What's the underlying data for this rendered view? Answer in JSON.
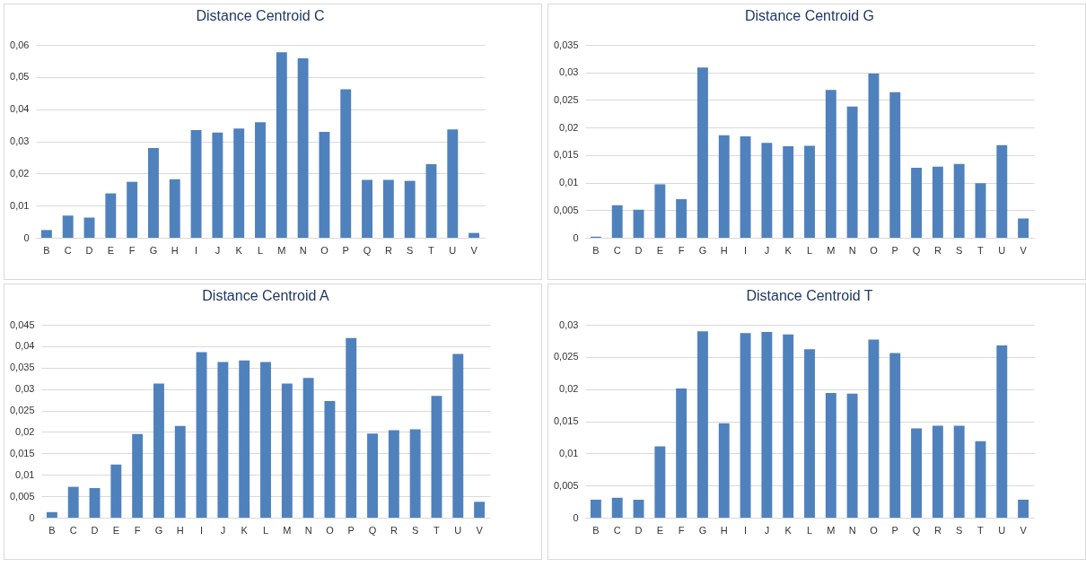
{
  "chart_data": [
    {
      "type": "bar",
      "title": "Distance Centroid C",
      "categories": [
        "B",
        "C",
        "D",
        "E",
        "F",
        "G",
        "H",
        "I",
        "J",
        "K",
        "L",
        "M",
        "N",
        "O",
        "P",
        "Q",
        "R",
        "S",
        "T",
        "U",
        "V"
      ],
      "values": [
        0.0024,
        0.0069,
        0.0063,
        0.0138,
        0.0174,
        0.0279,
        0.0182,
        0.0335,
        0.0327,
        0.034,
        0.0359,
        0.0577,
        0.0558,
        0.0329,
        0.0462,
        0.018,
        0.018,
        0.0177,
        0.0229,
        0.0337,
        0.0015
      ],
      "color": "#4f81bd",
      "ylim": [
        0,
        0.06
      ],
      "yticks": [
        {
          "value": 0,
          "label": "0"
        },
        {
          "value": 0.01,
          "label": "0,01"
        },
        {
          "value": 0.02,
          "label": "0,02"
        },
        {
          "value": 0.03,
          "label": "0,03"
        },
        {
          "value": 0.04,
          "label": "0,04"
        },
        {
          "value": 0.05,
          "label": "0,05"
        },
        {
          "value": 0.06,
          "label": "0,06"
        }
      ],
      "grid": "y"
    },
    {
      "type": "bar",
      "title": "Distance Centroid G",
      "categories": [
        "B",
        "C",
        "D",
        "E",
        "F",
        "G",
        "H",
        "I",
        "J",
        "K",
        "L",
        "M",
        "N",
        "O",
        "P",
        "Q",
        "R",
        "S",
        "T",
        "U",
        "V"
      ],
      "values": [
        0.0002,
        0.0059,
        0.0051,
        0.0097,
        0.007,
        0.0309,
        0.0186,
        0.0184,
        0.0172,
        0.0166,
        0.0167,
        0.0268,
        0.0238,
        0.0298,
        0.0264,
        0.0127,
        0.0129,
        0.0134,
        0.0099,
        0.0168,
        0.0035
      ],
      "color": "#4f81bd",
      "ylim": [
        0,
        0.035
      ],
      "yticks": [
        {
          "value": 0,
          "label": "0"
        },
        {
          "value": 0.005,
          "label": "0,005"
        },
        {
          "value": 0.01,
          "label": "0,01"
        },
        {
          "value": 0.015,
          "label": "0,015"
        },
        {
          "value": 0.02,
          "label": "0,02"
        },
        {
          "value": 0.025,
          "label": "0,025"
        },
        {
          "value": 0.03,
          "label": "0,03"
        },
        {
          "value": 0.035,
          "label": "0,035"
        }
      ],
      "grid": "y"
    },
    {
      "type": "bar",
      "title": "Distance Centroid A",
      "categories": [
        "B",
        "C",
        "D",
        "E",
        "F",
        "G",
        "H",
        "I",
        "J",
        "K",
        "L",
        "M",
        "N",
        "O",
        "P",
        "Q",
        "R",
        "S",
        "T",
        "U",
        "V"
      ],
      "values": [
        0.0013,
        0.0072,
        0.0069,
        0.0124,
        0.0195,
        0.0313,
        0.0214,
        0.0386,
        0.0363,
        0.0367,
        0.0363,
        0.0313,
        0.0326,
        0.0272,
        0.0419,
        0.0196,
        0.0204,
        0.0206,
        0.0284,
        0.0382,
        0.0037
      ],
      "color": "#4f81bd",
      "ylim": [
        0,
        0.045
      ],
      "yticks": [
        {
          "value": 0,
          "label": "0"
        },
        {
          "value": 0.005,
          "label": "0,005"
        },
        {
          "value": 0.01,
          "label": "0,01"
        },
        {
          "value": 0.015,
          "label": "0,015"
        },
        {
          "value": 0.02,
          "label": "0,02"
        },
        {
          "value": 0.025,
          "label": "0,025"
        },
        {
          "value": 0.03,
          "label": "0,03"
        },
        {
          "value": 0.035,
          "label": "0,035"
        },
        {
          "value": 0.04,
          "label": "0,04"
        },
        {
          "value": 0.045,
          "label": "0,045"
        }
      ],
      "grid": "y"
    },
    {
      "type": "bar",
      "title": "Distance Centroid T",
      "categories": [
        "B",
        "C",
        "D",
        "E",
        "F",
        "G",
        "H",
        "I",
        "J",
        "K",
        "L",
        "M",
        "N",
        "O",
        "P",
        "Q",
        "R",
        "S",
        "T",
        "U",
        "V"
      ],
      "values": [
        0.0028,
        0.0031,
        0.0028,
        0.0111,
        0.0201,
        0.029,
        0.0147,
        0.0287,
        0.0289,
        0.0285,
        0.0262,
        0.0194,
        0.0193,
        0.0277,
        0.0256,
        0.0139,
        0.0143,
        0.0143,
        0.0119,
        0.0268,
        0.0028
      ],
      "color": "#4f81bd",
      "ylim": [
        0,
        0.03
      ],
      "yticks": [
        {
          "value": 0,
          "label": "0"
        },
        {
          "value": 0.005,
          "label": "0,005"
        },
        {
          "value": 0.01,
          "label": "0,01"
        },
        {
          "value": 0.015,
          "label": "0,015"
        },
        {
          "value": 0.02,
          "label": "0,02"
        },
        {
          "value": 0.025,
          "label": "0,025"
        },
        {
          "value": 0.03,
          "label": "0,03"
        }
      ],
      "grid": "y"
    }
  ]
}
